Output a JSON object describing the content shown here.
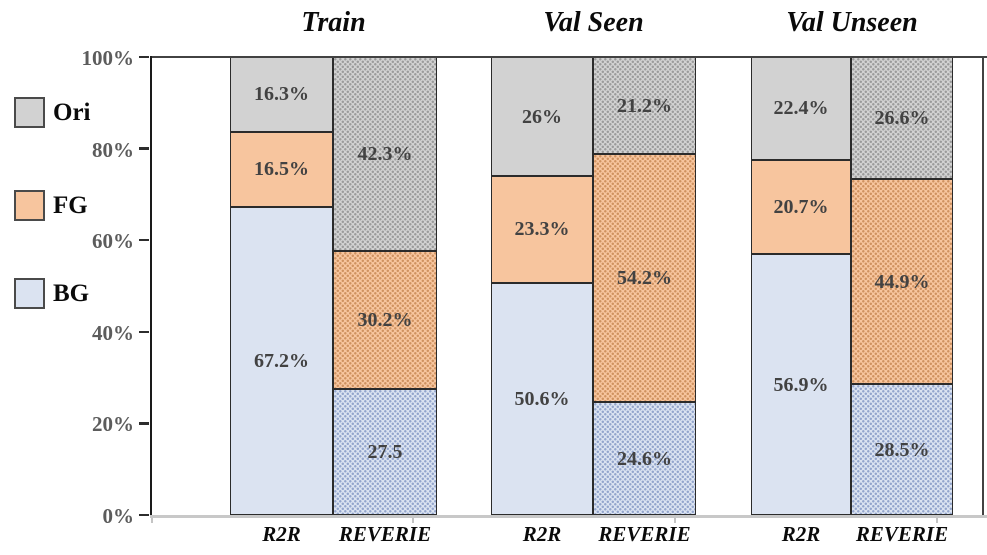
{
  "chart_data": {
    "type": "bar",
    "stacked": true,
    "orientation": "vertical",
    "unit": "percent",
    "ylim": [
      0,
      100
    ],
    "yticks": [
      "100%",
      "80%",
      "60%",
      "40%",
      "20%",
      "0%"
    ],
    "legend_position": "left",
    "legend": [
      {
        "series": "Ori",
        "label": "Ori",
        "fill": "#d2d2d2",
        "dot": "#9b9b9b"
      },
      {
        "series": "FG",
        "label": "FG",
        "fill": "#f7c59e",
        "dot": "#cf9260"
      },
      {
        "series": "BG",
        "label": "BG",
        "fill": "#dbe3f1",
        "dot": "#93a5cc"
      }
    ],
    "groups": [
      {
        "title": "Train",
        "bars": [
          {
            "label": "R2R",
            "texture": "solid",
            "segments": [
              {
                "series": "BG",
                "value": 67.2,
                "label": "67.2%"
              },
              {
                "series": "FG",
                "value": 16.5,
                "label": "16.5%"
              },
              {
                "series": "Ori",
                "value": 16.3,
                "label": "16.3%"
              }
            ]
          },
          {
            "label": "REVERIE",
            "texture": "dotted",
            "segments": [
              {
                "series": "BG",
                "value": 27.5,
                "label": "27.5"
              },
              {
                "series": "FG",
                "value": 30.2,
                "label": "30.2%"
              },
              {
                "series": "Ori",
                "value": 42.3,
                "label": "42.3%"
              }
            ]
          }
        ]
      },
      {
        "title": "Val Seen",
        "bars": [
          {
            "label": "R2R",
            "texture": "solid",
            "segments": [
              {
                "series": "BG",
                "value": 50.6,
                "label": "50.6%"
              },
              {
                "series": "FG",
                "value": 23.3,
                "label": "23.3%"
              },
              {
                "series": "Ori",
                "value": 26.0,
                "label": "26%"
              }
            ]
          },
          {
            "label": "REVERIE",
            "texture": "dotted",
            "segments": [
              {
                "series": "BG",
                "value": 24.6,
                "label": "24.6%"
              },
              {
                "series": "FG",
                "value": 54.2,
                "label": "54.2%"
              },
              {
                "series": "Ori",
                "value": 21.2,
                "label": "21.2%"
              }
            ]
          }
        ]
      },
      {
        "title": "Val Unseen",
        "bars": [
          {
            "label": "R2R",
            "texture": "solid",
            "segments": [
              {
                "series": "BG",
                "value": 56.9,
                "label": "56.9%"
              },
              {
                "series": "FG",
                "value": 20.7,
                "label": "20.7%"
              },
              {
                "series": "Ori",
                "value": 22.4,
                "label": "22.4%"
              }
            ]
          },
          {
            "label": "REVERIE",
            "texture": "dotted",
            "segments": [
              {
                "series": "BG",
                "value": 28.5,
                "label": "28.5%"
              },
              {
                "series": "FG",
                "value": 44.9,
                "label": "44.9%"
              },
              {
                "series": "Ori",
                "value": 26.6,
                "label": "26.6%"
              }
            ]
          }
        ]
      }
    ]
  },
  "colors": {
    "segment_border": "#2b2b2b",
    "axis_dark": "#424242",
    "axis_left": "#1a1a1a",
    "axis_bottom_light": "#c8c8c8",
    "value_label_text": "#424242",
    "ytick_text": "#5c5c5c",
    "title_text": "#0a0a0a"
  }
}
